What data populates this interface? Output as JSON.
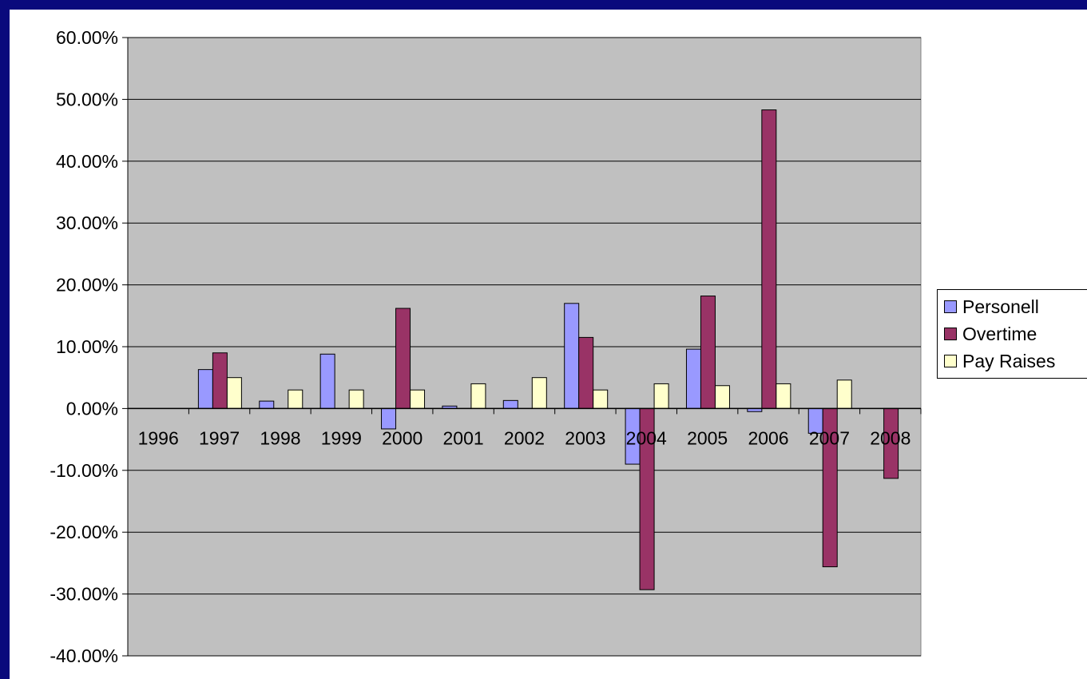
{
  "chart_data": {
    "type": "bar",
    "title": "",
    "xlabel": "",
    "ylabel": "",
    "categories": [
      "1996",
      "1997",
      "1998",
      "1999",
      "2000",
      "2001",
      "2002",
      "2003",
      "2004",
      "2005",
      "2006",
      "2007",
      "2008"
    ],
    "series": [
      {
        "name": "Personell",
        "color": "#9999ff",
        "values": [
          0,
          6.3,
          1.2,
          8.8,
          -3.3,
          0.4,
          1.3,
          17.0,
          -9.0,
          9.6,
          -0.5,
          -4.0,
          0
        ]
      },
      {
        "name": "Overtime",
        "color": "#993366",
        "values": [
          0,
          9.0,
          0,
          0,
          16.2,
          0,
          0,
          11.5,
          -29.3,
          18.2,
          48.3,
          -25.6,
          -11.3
        ]
      },
      {
        "name": "Pay Raises",
        "color": "#ffffcc",
        "values": [
          0,
          5.0,
          3.0,
          3.0,
          3.0,
          4.0,
          5.0,
          3.0,
          4.0,
          3.7,
          4.0,
          4.6,
          0
        ]
      }
    ],
    "ylim": [
      -40,
      60
    ],
    "y_ticks": [
      "60.00%",
      "50.00%",
      "40.00%",
      "30.00%",
      "20.00%",
      "10.00%",
      "0.00%",
      "-10.00%",
      "-20.00%",
      "-30.00%",
      "-40.00%"
    ],
    "y_tick_values": [
      60,
      50,
      40,
      30,
      20,
      10,
      0,
      -10,
      -20,
      -30,
      -40
    ],
    "grid": true,
    "legend_position": "right",
    "plot_background": "#c0c0c0"
  }
}
